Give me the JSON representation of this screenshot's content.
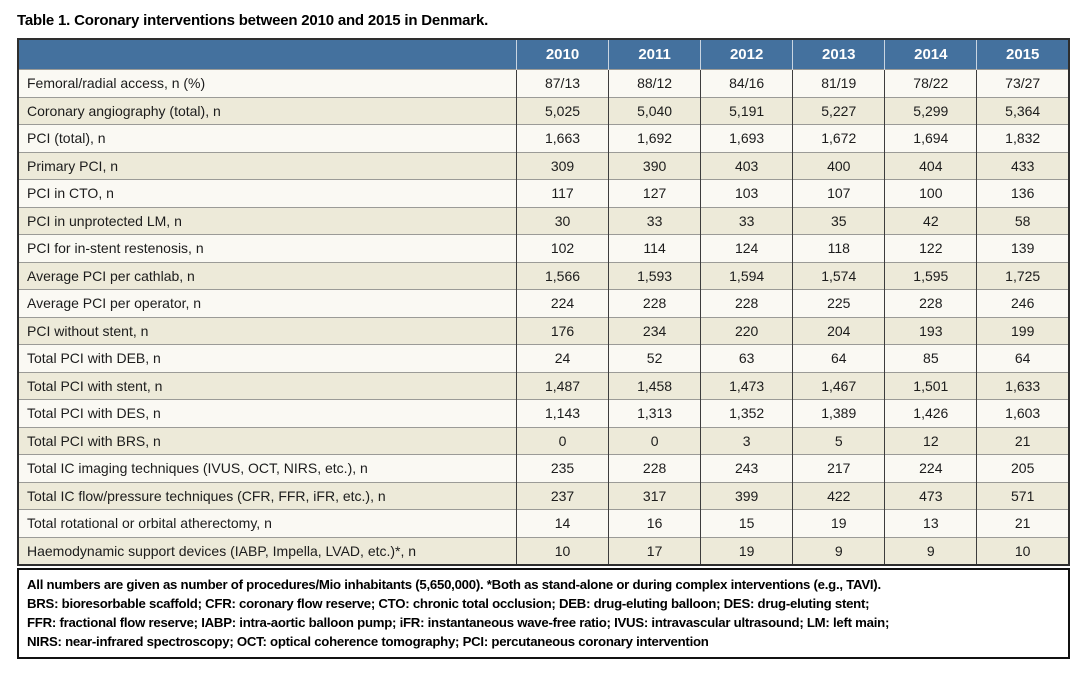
{
  "title": "Table 1. Coronary interventions between 2010 and 2015 in Denmark.",
  "table": {
    "corner_label": "",
    "years": [
      "2010",
      "2011",
      "2012",
      "2013",
      "2014",
      "2015"
    ],
    "rows": [
      {
        "label": "Femoral/radial access, n (%)",
        "values": [
          "87/13",
          "88/12",
          "84/16",
          "81/19",
          "78/22",
          "73/27"
        ]
      },
      {
        "label": "Coronary angiography (total), n",
        "values": [
          "5,025",
          "5,040",
          "5,191",
          "5,227",
          "5,299",
          "5,364"
        ]
      },
      {
        "label": "PCI (total), n",
        "values": [
          "1,663",
          "1,692",
          "1,693",
          "1,672",
          "1,694",
          "1,832"
        ]
      },
      {
        "label": "Primary PCI, n",
        "values": [
          "309",
          "390",
          "403",
          "400",
          "404",
          "433"
        ]
      },
      {
        "label": "PCI in CTO, n",
        "values": [
          "117",
          "127",
          "103",
          "107",
          "100",
          "136"
        ]
      },
      {
        "label": "PCI in unprotected LM, n",
        "values": [
          "30",
          "33",
          "33",
          "35",
          "42",
          "58"
        ]
      },
      {
        "label": "PCI for in-stent restenosis, n",
        "values": [
          "102",
          "114",
          "124",
          "118",
          "122",
          "139"
        ]
      },
      {
        "label": "Average PCI per cathlab, n",
        "values": [
          "1,566",
          "1,593",
          "1,594",
          "1,574",
          "1,595",
          "1,725"
        ]
      },
      {
        "label": "Average PCI per operator, n",
        "values": [
          "224",
          "228",
          "228",
          "225",
          "228",
          "246"
        ]
      },
      {
        "label": "PCI without stent, n",
        "values": [
          "176",
          "234",
          "220",
          "204",
          "193",
          "199"
        ]
      },
      {
        "label": "Total PCI with DEB, n",
        "values": [
          "24",
          "52",
          "63",
          "64",
          "85",
          "64"
        ]
      },
      {
        "label": "Total PCI with stent, n",
        "values": [
          "1,487",
          "1,458",
          "1,473",
          "1,467",
          "1,501",
          "1,633"
        ]
      },
      {
        "label": "Total PCI with DES, n",
        "values": [
          "1,143",
          "1,313",
          "1,352",
          "1,389",
          "1,426",
          "1,603"
        ]
      },
      {
        "label": "Total PCI with BRS, n",
        "values": [
          "0",
          "0",
          "3",
          "5",
          "12",
          "21"
        ]
      },
      {
        "label": "Total IC imaging techniques (IVUS, OCT, NIRS, etc.), n",
        "values": [
          "235",
          "228",
          "243",
          "217",
          "224",
          "205"
        ]
      },
      {
        "label": "Total IC flow/pressure techniques (CFR, FFR, iFR, etc.), n",
        "values": [
          "237",
          "317",
          "399",
          "422",
          "473",
          "571"
        ]
      },
      {
        "label": "Total rotational or orbital atherectomy, n",
        "values": [
          "14",
          "16",
          "15",
          "19",
          "13",
          "21"
        ]
      },
      {
        "label": "Haemodynamic support devices (IABP, Impella, LVAD, etc.)*, n",
        "values": [
          "10",
          "17",
          "19",
          "9",
          "9",
          "10"
        ]
      }
    ]
  },
  "footnote": {
    "lines": [
      "All numbers are given as number of procedures/Mio inhabitants (5,650,000). *Both as stand-alone or during complex interventions (e.g., TAVI).",
      "BRS: bioresorbable scaffold; CFR: coronary flow reserve; CTO: chronic total occlusion; DEB: drug-eluting balloon; DES: drug-eluting stent;",
      "FFR: fractional flow reserve; IABP: intra-aortic balloon pump; iFR: instantaneous wave-free ratio; IVUS: intravascular ultrasound; LM: left main;",
      "NIRS: near-infrared spectroscopy; OCT: optical coherence tomography; PCI: percutaneous coronary intervention"
    ]
  },
  "colors": {
    "header_bg": "#44719e",
    "header_text": "#ffffff",
    "row_even_bg": "#edead9",
    "row_odd_bg": "#faf9f3",
    "grid_vertical": "#3d3d3d",
    "grid_horizontal": "#9b9b97",
    "outer_border": "#2e2e2e",
    "footnote_border": "#111111"
  }
}
